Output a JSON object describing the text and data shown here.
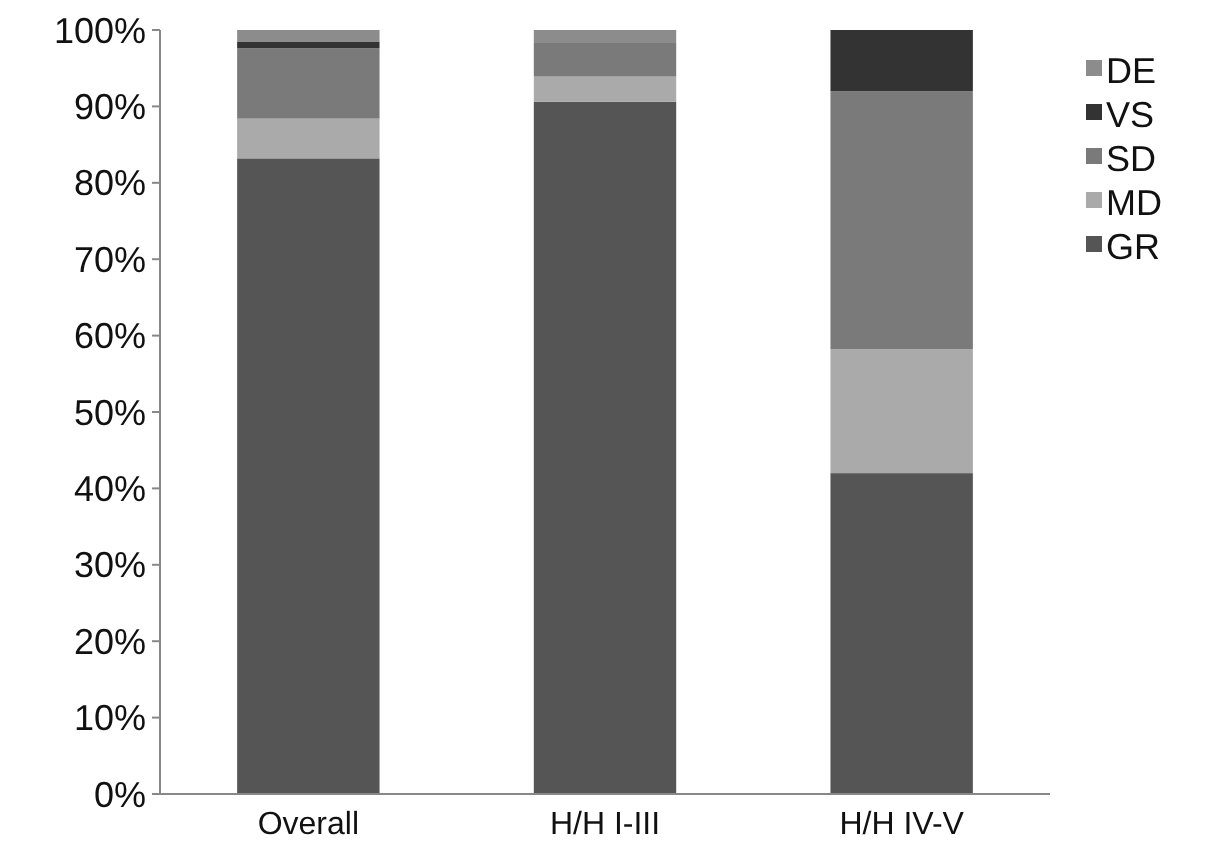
{
  "chart_data": {
    "type": "bar",
    "stacked": true,
    "categories": [
      "Overall",
      "H/H I-III",
      "H/H IV-V"
    ],
    "series": [
      {
        "name": "GR",
        "color": "#555555",
        "values": [
          83.2,
          90.6,
          42
        ]
      },
      {
        "name": "MD",
        "color": "#aaaaaa",
        "values": [
          5.2,
          3.3,
          16.2
        ]
      },
      {
        "name": "SD",
        "color": "#7a7a7a",
        "values": [
          9.2,
          4.4,
          33.8
        ]
      },
      {
        "name": "VS",
        "color": "#333333",
        "values": [
          0.9,
          0,
          8
        ]
      },
      {
        "name": "DE",
        "color": "#8c8c8c",
        "values": [
          1.5,
          1.7,
          0
        ]
      }
    ],
    "ylim": [
      0,
      100
    ],
    "yticks": [
      {
        "value": 0,
        "label": "0%"
      },
      {
        "value": 10,
        "label": "10%"
      },
      {
        "value": 20,
        "label": "20%"
      },
      {
        "value": 30,
        "label": "30%"
      },
      {
        "value": 40,
        "label": "40%"
      },
      {
        "value": 50,
        "label": "50%"
      },
      {
        "value": 60,
        "label": "60%"
      },
      {
        "value": 70,
        "label": "70%"
      },
      {
        "value": 80,
        "label": "80%"
      },
      {
        "value": 90,
        "label": "90%"
      },
      {
        "value": 100,
        "label": "100%"
      }
    ],
    "grid": false,
    "legend": "right"
  }
}
